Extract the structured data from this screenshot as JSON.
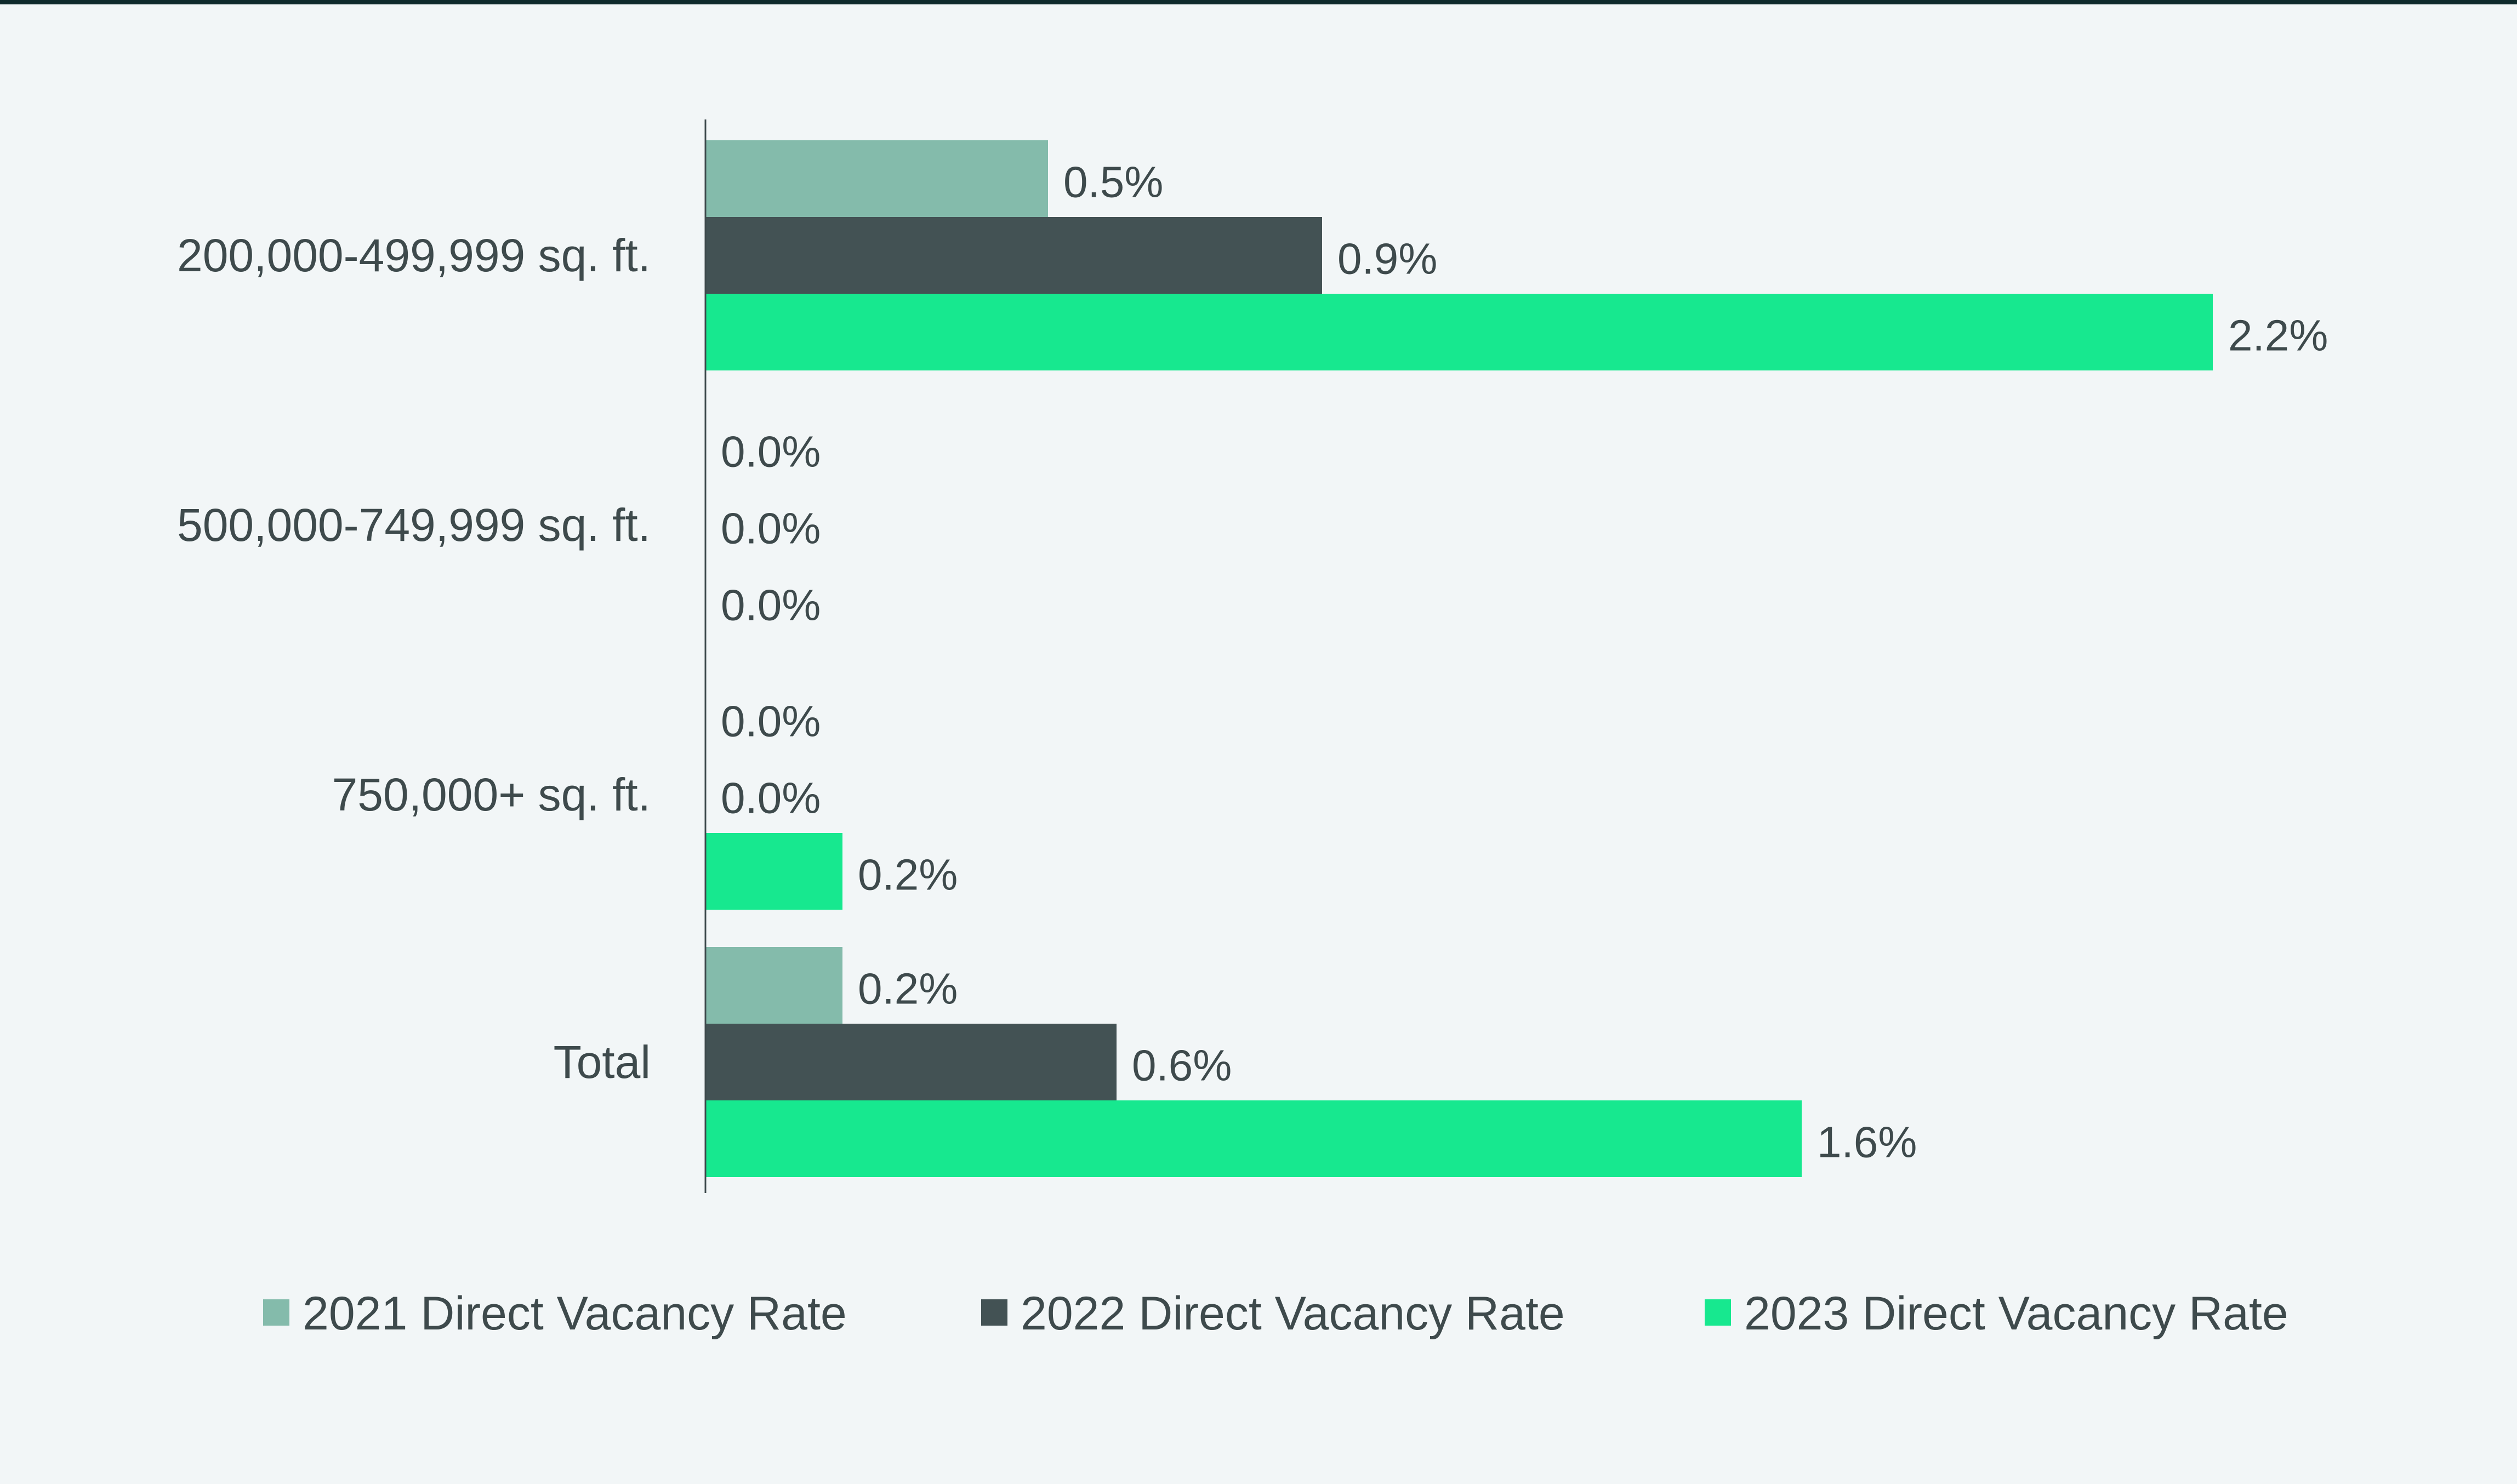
{
  "chart_data": {
    "type": "bar",
    "orientation": "horizontal",
    "categories": [
      "200,000-499,999 sq. ft.",
      "500,000-749,999 sq. ft.",
      "750,000+ sq. ft.",
      "Total"
    ],
    "series": [
      {
        "name": "2021 Direct Vacancy Rate",
        "color": "#84bbab",
        "values": [
          0.5,
          0.0,
          0.0,
          0.2
        ],
        "labels": [
          "0.5%",
          "0.0%",
          "0.0%",
          "0.2%"
        ]
      },
      {
        "name": "2022 Direct Vacancy Rate",
        "color": "#435254",
        "values": [
          0.9,
          0.0,
          0.0,
          0.6
        ],
        "labels": [
          "0.9%",
          "0.0%",
          "0.0%",
          "0.6%"
        ]
      },
      {
        "name": "2023 Direct Vacancy Rate",
        "color": "#17e88f",
        "values": [
          2.2,
          0.0,
          0.2,
          1.6
        ],
        "labels": [
          "2.2%",
          "0.0%",
          "0.2%",
          "1.6%"
        ]
      }
    ],
    "xlim": [
      0,
      2.4
    ],
    "title": "",
    "xlabel": "",
    "ylabel": "",
    "grid": false,
    "legend": "bottom"
  },
  "colors": {
    "background": "#f2f6f7",
    "top_rule": "#0f2a2c",
    "axis": "#3e4a4c",
    "text": "#3e4a4c"
  }
}
